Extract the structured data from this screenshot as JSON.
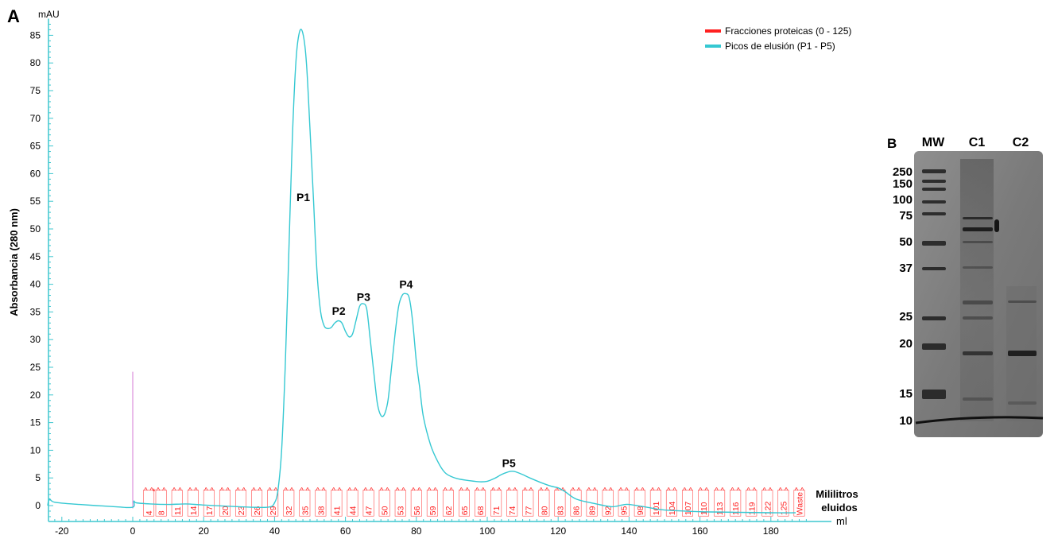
{
  "panel_labels": {
    "a": "A",
    "b": "B"
  },
  "colors": {
    "axis": "#3fc7cf",
    "trace": "#35c8d2",
    "fractions": "#ff2020",
    "injection": "#e0a0e0"
  },
  "chart_data": [
    {
      "type": "line",
      "title": "",
      "xlabel": "ml",
      "ylabel": "Absorbancia (280 nm)",
      "y_unit": "mAU",
      "xlim": [
        -24,
        193
      ],
      "ylim": [
        -2,
        88
      ],
      "x_ticks": [
        -20,
        0,
        20,
        40,
        60,
        80,
        100,
        120,
        140,
        160,
        180
      ],
      "y_ticks": [
        0,
        5,
        10,
        15,
        20,
        25,
        30,
        35,
        40,
        45,
        50,
        55,
        60,
        65,
        70,
        75,
        80,
        85
      ],
      "grid": false,
      "legend_position": "top-right",
      "legend": [
        {
          "name": "Fracciones proteicas (0 - 125)",
          "color": "#ff2020"
        },
        {
          "name": "Picos de elusión (P1 - P5)",
          "color": "#35c8d2"
        }
      ],
      "axis_annotation": [
        "Mililitros",
        "eluidos"
      ],
      "injection_mark": {
        "x": 0,
        "y": 24.2
      },
      "series": [
        {
          "name": "Picos de elusión (P1 - P5)",
          "x": [
            -24,
            -23.5,
            -22,
            -15,
            -5,
            0,
            0.3,
            1,
            5,
            10,
            15,
            20,
            30,
            38,
            40,
            41,
            42,
            43,
            44,
            45,
            46,
            47,
            48,
            49,
            50,
            51,
            52,
            53,
            54,
            55,
            56,
            57,
            58,
            59,
            60,
            61,
            62,
            63,
            64,
            65,
            66,
            67,
            68,
            69,
            70,
            71,
            72,
            73,
            74,
            75,
            76,
            77,
            78,
            79,
            80,
            81,
            82,
            84,
            86,
            88,
            90,
            92,
            95,
            98,
            100,
            102,
            104,
            106,
            107,
            108,
            110,
            112,
            115,
            118,
            120,
            122,
            125,
            130,
            135,
            138,
            140,
            145,
            150,
            160,
            170,
            180,
            187
          ],
          "y": [
            0,
            1.2,
            0.6,
            0.2,
            -0.2,
            -0.3,
            0.8,
            0.5,
            0.3,
            0.2,
            0.3,
            0.1,
            -0.2,
            -0.3,
            0.5,
            3,
            10,
            25,
            45,
            66,
            80,
            85.5,
            85.3,
            80,
            68,
            55,
            42,
            35,
            32.5,
            32,
            32.2,
            33,
            33.4,
            33,
            31.5,
            30.5,
            31,
            33.5,
            36,
            36.5,
            35.5,
            30,
            24,
            18.5,
            16.3,
            16.5,
            19,
            25,
            31,
            36,
            38,
            38.3,
            37.5,
            33,
            26,
            21,
            16,
            11,
            8,
            6,
            5.2,
            4.8,
            4.5,
            4.3,
            4.4,
            4.9,
            5.6,
            6.1,
            6.2,
            6.1,
            5.6,
            5,
            4.2,
            3.5,
            3.2,
            2.5,
            1.2,
            0.4,
            -0.2,
            0.1,
            0.2,
            -0.3,
            -0.8,
            -1.1,
            -1.2,
            -1.3,
            -1.3
          ]
        }
      ],
      "annotations": [
        {
          "label": "P1",
          "x": 49,
          "y": 55
        },
        {
          "label": "P2",
          "x": 59,
          "y": 34.5
        },
        {
          "label": "P3",
          "x": 66,
          "y": 37
        },
        {
          "label": "P4",
          "x": 78,
          "y": 39.3
        },
        {
          "label": "P5",
          "x": 107,
          "y": 7
        }
      ],
      "fractions": {
        "start_x": 0,
        "width_ml": 1.5,
        "marker_y": 2.8,
        "labels": [
          {
            "text": "4",
            "x": 4.5
          },
          {
            "text": "8",
            "x": 8
          },
          {
            "text": "11",
            "x": 12.5
          },
          {
            "text": "14",
            "x": 17
          },
          {
            "text": "17",
            "x": 21.5
          },
          {
            "text": "20",
            "x": 26
          },
          {
            "text": "23",
            "x": 30.5
          },
          {
            "text": "26",
            "x": 35
          },
          {
            "text": "29",
            "x": 39.5
          },
          {
            "text": "32",
            "x": 44
          },
          {
            "text": "35",
            "x": 48.5
          },
          {
            "text": "38",
            "x": 53
          },
          {
            "text": "41",
            "x": 57.5
          },
          {
            "text": "44",
            "x": 62
          },
          {
            "text": "47",
            "x": 66.5
          },
          {
            "text": "50",
            "x": 71
          },
          {
            "text": "53",
            "x": 75.5
          },
          {
            "text": "56",
            "x": 80
          },
          {
            "text": "59",
            "x": 84.5
          },
          {
            "text": "62",
            "x": 89
          },
          {
            "text": "65",
            "x": 93.5
          },
          {
            "text": "68",
            "x": 98
          },
          {
            "text": "71",
            "x": 102.5
          },
          {
            "text": "74",
            "x": 107
          },
          {
            "text": "77",
            "x": 111.5
          },
          {
            "text": "80",
            "x": 116
          },
          {
            "text": "83",
            "x": 120.5
          },
          {
            "text": "86",
            "x": 125
          },
          {
            "text": "89",
            "x": 129.5
          },
          {
            "text": "92",
            "x": 134
          },
          {
            "text": "95",
            "x": 138.5
          },
          {
            "text": "98",
            "x": 143
          },
          {
            "text": "101",
            "x": 147.5
          },
          {
            "text": "104",
            "x": 152
          },
          {
            "text": "107",
            "x": 156.5
          },
          {
            "text": "110",
            "x": 161
          },
          {
            "text": "113",
            "x": 165.5
          },
          {
            "text": "116",
            "x": 170
          },
          {
            "text": "119",
            "x": 174.5
          },
          {
            "text": "122",
            "x": 179
          },
          {
            "text": "125",
            "x": 183.5
          },
          {
            "text": "Waste",
            "x": 188
          }
        ]
      }
    }
  ],
  "gel": {
    "lane_labels": [
      "MW",
      "C1",
      "C2"
    ],
    "marker_labels": [
      "250",
      "150",
      "100",
      "75",
      "50",
      "37",
      "25",
      "20",
      "15",
      "10"
    ]
  }
}
